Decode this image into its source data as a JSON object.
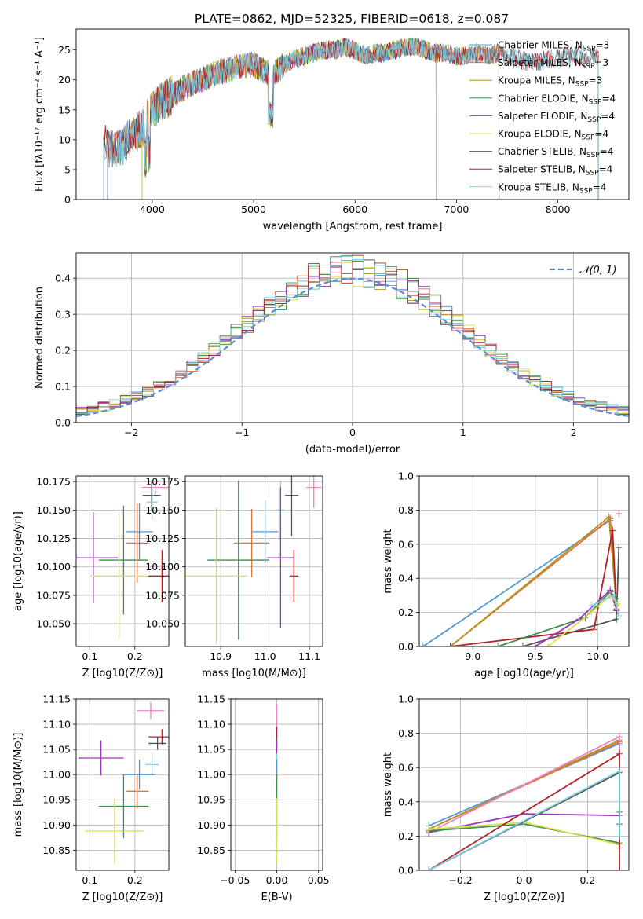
{
  "title": "PLATE=0862, MJD=52325, FIBERID=0618, z=0.087",
  "colors": {
    "Chabrier MILES": "#4f9ad6",
    "Salpeter MILES": "#e0733b",
    "Kroupa MILES": "#b5941f",
    "Chabrier ELODIE": "#3f8f4f",
    "Salpeter ELODIE": "#9b36b8",
    "Kroupa ELODIE": "#d8e04a",
    "Chabrier STELIB": "#555555",
    "Salpeter STELIB": "#b0202a",
    "Kroupa STELIB": "#7dd3e0"
  },
  "chart_data": [
    {
      "id": "spectrum",
      "type": "line",
      "xlabel": "wavelength [Angstrom, rest frame]",
      "ylabel": "Flux [fλ10⁻¹⁷ erg cm⁻² s⁻¹ A⁻¹]",
      "xlim": [
        3250,
        8700
      ],
      "ylim": [
        0,
        28.5
      ],
      "xticks": [
        4000,
        5000,
        6000,
        7000,
        8000
      ],
      "yticks": [
        0,
        5,
        10,
        15,
        20,
        25
      ],
      "grid": false,
      "legend": "top-right",
      "continuum": {
        "x": [
          3500,
          3600,
          3700,
          3800,
          3900,
          4000,
          4100,
          4200,
          4300,
          4400,
          4500,
          4600,
          4700,
          4800,
          4900,
          5000,
          5100,
          5200,
          5300,
          5400,
          5500,
          5600,
          5700,
          5800,
          5900,
          6000,
          6100,
          6200,
          6300,
          6400,
          6500,
          6600,
          6700,
          6800,
          6900,
          7000,
          7100,
          7200,
          7300,
          7400,
          7500,
          7600,
          7700,
          7800,
          7900,
          8000,
          8100,
          8200,
          8300,
          8400
        ],
        "y": [
          9.5,
          8.5,
          9,
          10.5,
          12,
          15,
          16.5,
          17.5,
          18.5,
          19.5,
          20,
          21,
          21.5,
          22,
          22.5,
          22.5,
          21.5,
          21,
          22.5,
          23.5,
          24,
          24.5,
          25,
          25,
          25.5,
          25,
          24,
          24.5,
          24.5,
          25,
          25.5,
          25.5,
          25,
          24.5,
          24.5,
          24,
          24,
          24.5,
          24,
          24.5,
          24,
          23.5,
          23,
          23,
          23.5,
          23.5,
          24,
          24,
          23.5,
          24
        ]
      },
      "series": [
        {
          "name": "Chabrier MILES, N_SSP=3",
          "label": "Chabrier MILES, N",
          "sub": "SSP",
          "nssp": "=3",
          "color": "#4f9ad6",
          "x_range": [
            3560,
            7420
          ]
        },
        {
          "name": "Salpeter MILES, N_SSP=3",
          "label": "Salpeter MILES, N",
          "sub": "SSP",
          "nssp": "=3",
          "color": "#e0733b",
          "x_range": [
            3560,
            7420
          ]
        },
        {
          "name": "Kroupa MILES, N_SSP=3",
          "label": "Kroupa MILES, N",
          "sub": "SSP",
          "nssp": "=3",
          "color": "#b5941f",
          "x_range": [
            3560,
            7420
          ]
        },
        {
          "name": "Chabrier ELODIE, N_SSP=4",
          "label": "Chabrier ELODIE, N",
          "sub": "SSP",
          "nssp": "=4",
          "color": "#3f8f4f",
          "x_range": [
            3900,
            6800
          ]
        },
        {
          "name": "Salpeter ELODIE, N_SSP=4",
          "label": "Salpeter ELODIE, N",
          "sub": "SSP",
          "nssp": "=4",
          "color": "#9b36b8",
          "x_range": [
            3900,
            6800
          ]
        },
        {
          "name": "Kroupa ELODIE, N_SSP=4",
          "label": "Kroupa ELODIE, N",
          "sub": "SSP",
          "nssp": "=4",
          "color": "#d8e04a",
          "x_range": [
            3900,
            6800
          ]
        },
        {
          "name": "Chabrier STELIB, N_SSP=4",
          "label": "Chabrier STELIB, N",
          "sub": "SSP",
          "nssp": "=4",
          "color": "#555555",
          "x_range": [
            3520,
            8400
          ]
        },
        {
          "name": "Salpeter STELIB, N_SSP=4",
          "label": "Salpeter STELIB, N",
          "sub": "SSP",
          "nssp": "=4",
          "color": "#b0202a",
          "x_range": [
            3520,
            8400
          ]
        },
        {
          "name": "Kroupa STELIB, N_SSP=4",
          "label": "Kroupa STELIB, N",
          "sub": "SSP",
          "nssp": "=4",
          "color": "#7dd3e0",
          "x_range": [
            3520,
            8400
          ]
        }
      ]
    },
    {
      "id": "residuals",
      "type": "step",
      "xlabel": "(data-model)/error",
      "ylabel": "Normed distribution",
      "xlim": [
        -2.5,
        2.5
      ],
      "ylim": [
        0,
        0.47
      ],
      "xticks": [
        -2,
        -1,
        0,
        1,
        2
      ],
      "yticks": [
        0.0,
        0.1,
        0.2,
        0.3,
        0.4
      ],
      "grid": true,
      "legend": "top-right",
      "reference": {
        "label": "𝒩(0, 1)",
        "color": "#5b8ed6",
        "mu": 0,
        "sigma": 1
      },
      "bin_edges_start": -2.5,
      "bin_width": 0.1,
      "n_bins": 50
    },
    {
      "id": "age_vs_Z",
      "type": "errorbar",
      "xlabel": "Z [log10(Z/Z⊙)]",
      "ylabel": "age [log10(age/yr)]",
      "xlim": [
        0.07,
        0.275
      ],
      "ylim": [
        10.03,
        10.18
      ],
      "xticks": [
        0.1,
        0.2
      ],
      "yticks": [
        10.05,
        10.075,
        10.1,
        10.125,
        10.15,
        10.175
      ],
      "grid": true,
      "points": [
        {
          "color": "#ee82c6",
          "x": 0.245,
          "xerr": 0.03,
          "y": 10.17,
          "yerr": 0.006
        },
        {
          "color": "#555555",
          "x": 0.237,
          "xerr": 0.02,
          "y": 10.163,
          "yerr": 0.013
        },
        {
          "color": "#7dd3e0",
          "x": 0.238,
          "xerr": 0.012,
          "y": 10.157,
          "yerr": 0.016
        },
        {
          "color": "#4f9ad6",
          "x": 0.21,
          "xerr": 0.03,
          "y": 10.131,
          "yerr": 0.025
        },
        {
          "color": "#e0733b",
          "x": 0.205,
          "xerr": 0.025,
          "y": 10.121,
          "yerr": 0.035
        },
        {
          "color": "#3f8f4f",
          "x": 0.175,
          "xerr": 0.055,
          "y": 10.106,
          "yerr": 0.048
        },
        {
          "color": "#9b36b8",
          "x": 0.108,
          "xerr": 0.055,
          "y": 10.108,
          "yerr": 0.04
        },
        {
          "color": "#d8e04a",
          "x": 0.165,
          "xerr": 0.065,
          "y": 10.092,
          "yerr": 0.055
        },
        {
          "color": "#b0202a",
          "x": 0.26,
          "xerr": 0.03,
          "y": 10.092,
          "yerr": 0.023
        }
      ]
    },
    {
      "id": "age_vs_mass",
      "type": "errorbar",
      "xlabel": "mass [log10(M/M⊙)]",
      "ylabel": "",
      "xlim": [
        10.82,
        11.13
      ],
      "ylim": [
        10.03,
        10.18
      ],
      "xticks": [
        10.9,
        11.0,
        11.1
      ],
      "yticks": [
        10.05,
        10.075,
        10.1,
        10.125,
        10.15,
        10.175
      ],
      "grid": true,
      "points": [
        {
          "color": "#ee82c6",
          "x": 11.11,
          "xerr": 0.017,
          "y": 10.17,
          "yerr": 0.018
        },
        {
          "color": "#555555",
          "x": 11.06,
          "xerr": 0.015,
          "y": 10.163,
          "yerr": 0.036
        },
        {
          "color": "#7dd3e0",
          "x": 11.035,
          "xerr": 0.01,
          "y": 10.15,
          "yerr": 0.026
        },
        {
          "color": "#4f9ad6",
          "x": 11.0,
          "xerr": 0.03,
          "y": 10.131,
          "yerr": 0.028
        },
        {
          "color": "#e0733b",
          "x": 10.97,
          "xerr": 0.04,
          "y": 10.121,
          "yerr": 0.03
        },
        {
          "color": "#3f8f4f",
          "x": 10.94,
          "xerr": 0.07,
          "y": 10.106,
          "yerr": 0.07
        },
        {
          "color": "#9b36b8",
          "x": 11.035,
          "xerr": 0.03,
          "y": 10.108,
          "yerr": 0.062
        },
        {
          "color": "#d8e04a",
          "x": 10.89,
          "xerr": 0.07,
          "y": 10.092,
          "yerr": 0.06
        },
        {
          "color": "#b0202a",
          "x": 11.065,
          "xerr": 0.01,
          "y": 10.092,
          "yerr": 0.023
        }
      ]
    },
    {
      "id": "weight_vs_age",
      "type": "line",
      "xlabel": "age [log10(age/yr)]",
      "ylabel": "mass weight",
      "xlim": [
        8.57,
        10.25
      ],
      "ylim": [
        0,
        1
      ],
      "xticks": [
        9.0,
        9.5,
        10.0
      ],
      "yticks": [
        0.0,
        0.2,
        0.4,
        0.6,
        0.8,
        1.0
      ],
      "grid": true,
      "series": [
        {
          "color": "#4f9ad6",
          "x": [
            8.6,
            10.1,
            10.15
          ],
          "y": [
            0.0,
            0.74,
            0.26
          ]
        },
        {
          "color": "#e0733b",
          "x": [
            8.82,
            10.1,
            10.15
          ],
          "y": [
            0.0,
            0.75,
            0.24
          ]
        },
        {
          "color": "#b5941f",
          "x": [
            8.82,
            10.09,
            10.15
          ],
          "y": [
            0.0,
            0.76,
            0.24
          ]
        },
        {
          "color": "#555555",
          "x": [
            9.4,
            10.15,
            10.17
          ],
          "y": [
            0.0,
            0.16,
            0.58
          ]
        },
        {
          "color": "#b0202a",
          "x": [
            8.82,
            9.97,
            10.12,
            10.15
          ],
          "y": [
            0.0,
            0.1,
            0.68,
            0.21
          ]
        },
        {
          "color": "#3f8f4f",
          "x": [
            9.2,
            9.9,
            10.1,
            10.15
          ],
          "y": [
            0.0,
            0.17,
            0.32,
            0.28
          ]
        },
        {
          "color": "#9b36b8",
          "x": [
            9.5,
            9.85,
            10.1,
            10.15
          ],
          "y": [
            0.0,
            0.16,
            0.33,
            0.22
          ]
        },
        {
          "color": "#d8e04a",
          "x": [
            9.6,
            9.95,
            10.1,
            10.16
          ],
          "y": [
            0.0,
            0.2,
            0.3,
            0.25
          ]
        },
        {
          "color": "#7dd3e0",
          "x": [
            9.95,
            10.13,
            10.17
          ],
          "y": [
            0.24,
            0.3,
            0.18
          ]
        },
        {
          "color": "#ee82c6",
          "x": [
            10.17
          ],
          "y": [
            0.78
          ]
        }
      ]
    },
    {
      "id": "mass_vs_Z",
      "type": "errorbar",
      "xlabel": "Z [log10(Z/Z⊙)]",
      "ylabel": "mass [log10(M/M⊙)]",
      "xlim": [
        0.07,
        0.275
      ],
      "ylim": [
        10.81,
        11.15
      ],
      "xticks": [
        0.1,
        0.2
      ],
      "yticks": [
        10.85,
        10.9,
        10.95,
        11.0,
        11.05,
        11.1,
        11.15
      ],
      "grid": true,
      "points": [
        {
          "color": "#ee82c6",
          "x": 0.235,
          "xerr": 0.03,
          "y": 11.127,
          "yerr": 0.017
        },
        {
          "color": "#b0202a",
          "x": 0.26,
          "xerr": 0.03,
          "y": 11.075,
          "yerr": 0.015
        },
        {
          "color": "#555555",
          "x": 0.25,
          "xerr": 0.02,
          "y": 11.062,
          "yerr": 0.013
        },
        {
          "color": "#9b36b8",
          "x": 0.125,
          "xerr": 0.05,
          "y": 11.033,
          "yerr": 0.035
        },
        {
          "color": "#7dd3e0",
          "x": 0.238,
          "xerr": 0.015,
          "y": 11.02,
          "yerr": 0.022
        },
        {
          "color": "#4f9ad6",
          "x": 0.21,
          "xerr": 0.035,
          "y": 11.0,
          "yerr": 0.03
        },
        {
          "color": "#e0733b",
          "x": 0.205,
          "xerr": 0.025,
          "y": 10.967,
          "yerr": 0.035
        },
        {
          "color": "#3f8f4f",
          "x": 0.175,
          "xerr": 0.055,
          "y": 10.937,
          "yerr": 0.063
        },
        {
          "color": "#d8e04a",
          "x": 0.155,
          "xerr": 0.065,
          "y": 10.888,
          "yerr": 0.065
        }
      ]
    },
    {
      "id": "mass_vs_ebv",
      "type": "errorbar",
      "xlabel": "E(B-V)",
      "ylabel": "",
      "xlim": [
        -0.055,
        0.055
      ],
      "ylim": [
        10.81,
        11.15
      ],
      "xticks": [
        -0.05,
        0.0,
        0.05
      ],
      "yticks": [
        10.85,
        10.9,
        10.95,
        11.0,
        11.05,
        11.1,
        11.15
      ],
      "grid": true,
      "points": [
        {
          "color": "#ee82c6",
          "x": 0.0,
          "xerr": 0.0,
          "y": 11.11,
          "yerr": 0.03
        },
        {
          "color": "#b0202a",
          "x": 0.0,
          "xerr": 0.0,
          "y": 11.075,
          "yerr": 0.02
        },
        {
          "color": "#555555",
          "x": 0.0,
          "xerr": 0.0,
          "y": 11.062,
          "yerr": 0.013
        },
        {
          "color": "#9b36b8",
          "x": 0.0,
          "xerr": 0.0,
          "y": 11.033,
          "yerr": 0.035
        },
        {
          "color": "#7dd3e0",
          "x": 0.0,
          "xerr": 0.0,
          "y": 11.02,
          "yerr": 0.022
        },
        {
          "color": "#4f9ad6",
          "x": 0.0,
          "xerr": 0.0,
          "y": 11.0,
          "yerr": 0.03
        },
        {
          "color": "#e0733b",
          "x": 0.0,
          "xerr": 0.0,
          "y": 10.967,
          "yerr": 0.035
        },
        {
          "color": "#3f8f4f",
          "x": 0.0,
          "xerr": 0.0,
          "y": 10.937,
          "yerr": 0.063
        },
        {
          "color": "#d8e04a",
          "x": 0.0,
          "xerr": 0.0,
          "y": 10.888,
          "yerr": 0.065
        }
      ]
    },
    {
      "id": "weight_vs_Z",
      "type": "line",
      "xlabel": "Z [log10(Z/Z⊙)]",
      "ylabel": "mass weight",
      "xlim": [
        -0.33,
        0.33
      ],
      "ylim": [
        0,
        1
      ],
      "xticks": [
        -0.2,
        0.0,
        0.2
      ],
      "yticks": [
        0.0,
        0.2,
        0.4,
        0.6,
        0.8,
        1.0
      ],
      "grid": true,
      "series": [
        {
          "color": "#4f9ad6",
          "x": [
            -0.3,
            0.3,
            0.3
          ],
          "y": [
            0.26,
            0.74,
            0.0
          ]
        },
        {
          "color": "#e0733b",
          "x": [
            -0.3,
            0.3,
            0.3
          ],
          "y": [
            0.24,
            0.75,
            0.0
          ]
        },
        {
          "color": "#b5941f",
          "x": [
            -0.3,
            0.3,
            0.3
          ],
          "y": [
            0.24,
            0.76,
            0.0
          ]
        },
        {
          "color": "#ee82c6",
          "x": [
            -0.3,
            0.3,
            0.3
          ],
          "y": [
            0.22,
            0.78,
            0.0
          ]
        },
        {
          "color": "#9b36b8",
          "x": [
            -0.3,
            0.0,
            0.3,
            0.3
          ],
          "y": [
            0.22,
            0.33,
            0.32,
            0.13
          ]
        },
        {
          "color": "#3f8f4f",
          "x": [
            -0.3,
            0.0,
            0.3,
            0.3
          ],
          "y": [
            0.23,
            0.27,
            0.16,
            0.34
          ]
        },
        {
          "color": "#d8e04a",
          "x": [
            -0.3,
            0.0,
            0.3
          ],
          "y": [
            0.24,
            0.28,
            0.15
          ]
        },
        {
          "color": "#b0202a",
          "x": [
            -0.3,
            0.3,
            0.3
          ],
          "y": [
            0.0,
            0.68,
            0.0
          ]
        },
        {
          "color": "#555555",
          "x": [
            -0.3,
            0.3,
            0.3
          ],
          "y": [
            0.0,
            0.57,
            0.27
          ]
        },
        {
          "color": "#7dd3e0",
          "x": [
            -0.3,
            0.3,
            0.3
          ],
          "y": [
            0.0,
            0.58,
            0.2
          ]
        }
      ]
    }
  ]
}
